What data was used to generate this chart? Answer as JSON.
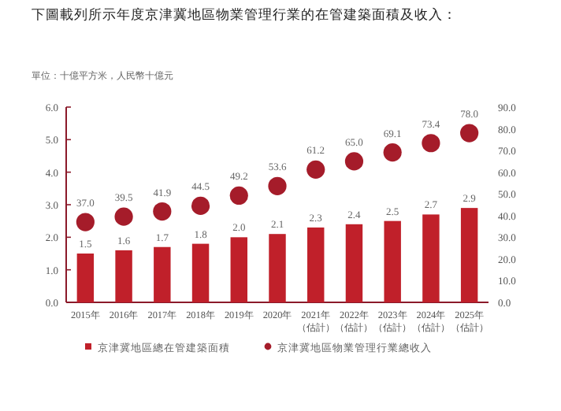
{
  "chart_data": {
    "type": "bar",
    "title": "下圖載列所示年度京津冀地區物業管理行業的在管建築面積及收入：",
    "subtitle": "單位：十億平方米，人民幣十億元",
    "categories": [
      "2015年",
      "2016年",
      "2017年",
      "2018年",
      "2019年",
      "2020年",
      "2021年（估計）",
      "2022年（估計）",
      "2023年（估計）",
      "2024年（估計）",
      "2025年（估計）"
    ],
    "series": [
      {
        "name": "京津冀地區總在管建築面積",
        "color": "#c0202a",
        "values": [
          1.5,
          1.6,
          1.7,
          1.8,
          2.0,
          2.1,
          2.3,
          2.4,
          2.5,
          2.7,
          2.9
        ],
        "value_labels": [
          "1.5",
          "1.6",
          "1.7",
          "1.8",
          "2.0",
          "2.1",
          "2.3",
          "2.4",
          "2.5",
          "2.7",
          "2.9"
        ]
      },
      {
        "name": "京津冀地區物業管理行業總收入",
        "type": "scatter",
        "axis": "y2",
        "color": "#a51c2a",
        "values": [
          37.0,
          39.5,
          41.9,
          44.5,
          49.2,
          53.6,
          61.2,
          65.0,
          69.1,
          73.4,
          78.0
        ],
        "value_labels": [
          "37.0",
          "39.5",
          "41.9",
          "44.5",
          "49.2",
          "53.6",
          "61.2",
          "65.0",
          "69.1",
          "73.4",
          "78.0"
        ]
      }
    ],
    "ylim": [
      0,
      6
    ],
    "yticks": [
      {
        "value": 0,
        "label": "0.0"
      },
      {
        "value": 1,
        "label": "1.0"
      },
      {
        "value": 2,
        "label": "2.0"
      },
      {
        "value": 3,
        "label": "3.0"
      },
      {
        "value": 4,
        "label": "4.0"
      },
      {
        "value": 5,
        "label": "5.0"
      },
      {
        "value": 6,
        "label": "6.0"
      }
    ],
    "y2lim": [
      0,
      90
    ],
    "y2ticks": [
      {
        "value": 0,
        "label": "0.0"
      },
      {
        "value": 10,
        "label": "10.0"
      },
      {
        "value": 20,
        "label": "20.0"
      },
      {
        "value": 30,
        "label": "30.0"
      },
      {
        "value": 40,
        "label": "40.0"
      },
      {
        "value": 50,
        "label": "50.0"
      },
      {
        "value": 60,
        "label": "60.0"
      },
      {
        "value": 70,
        "label": "70.0"
      },
      {
        "value": 80,
        "label": "80.0"
      },
      {
        "value": 90,
        "label": "90.0"
      }
    ],
    "marker": "circle",
    "grid": false,
    "legend": "bottom"
  }
}
